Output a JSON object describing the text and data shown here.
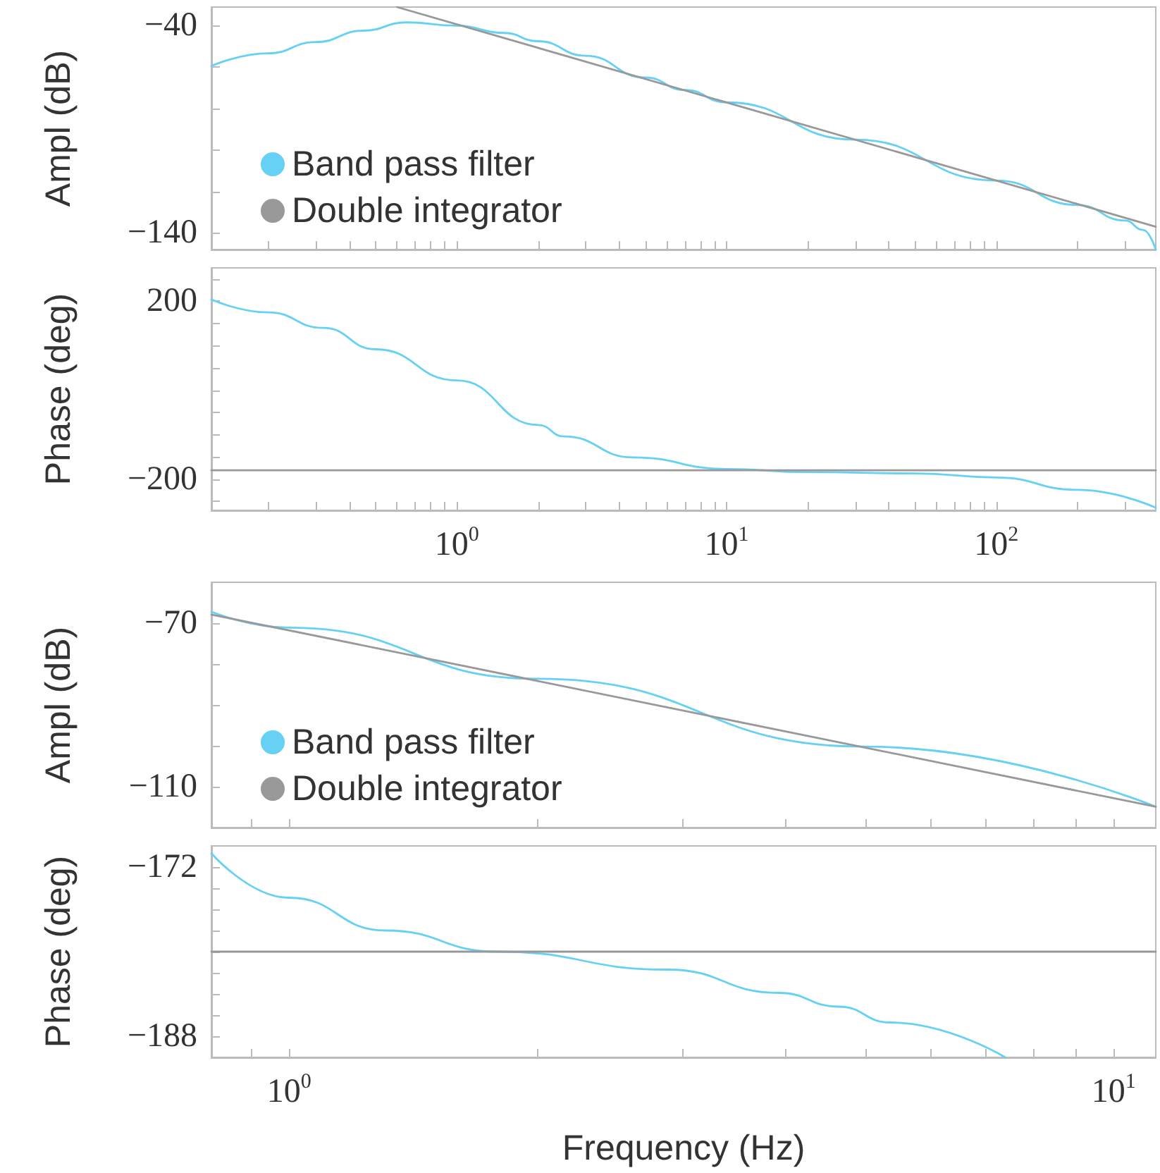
{
  "chart_data": [
    {
      "type": "line",
      "ylabel": "Ampl (dB)",
      "log": "x",
      "xlim": [
        0.123,
        390
      ],
      "ylim": [
        -148,
        -31
      ],
      "tick_labels": "y",
      "legend": "bottom left",
      "marker": "none",
      "xticks": [
        {
          "value": 0.2,
          "label": null
        },
        {
          "value": 0.3,
          "label": null
        },
        {
          "value": 0.4,
          "label": null
        },
        {
          "value": 0.5,
          "label": null
        },
        {
          "value": 0.6,
          "label": null
        },
        {
          "value": 0.7,
          "label": null
        },
        {
          "value": 0.8,
          "label": null
        },
        {
          "value": 0.9,
          "label": null
        },
        {
          "value": 1,
          "label": null
        },
        {
          "value": 2,
          "label": null
        },
        {
          "value": 3,
          "label": null
        },
        {
          "value": 4,
          "label": null
        },
        {
          "value": 5,
          "label": null
        },
        {
          "value": 6,
          "label": null
        },
        {
          "value": 7,
          "label": null
        },
        {
          "value": 8,
          "label": null
        },
        {
          "value": 9,
          "label": null
        },
        {
          "value": 10,
          "label": null
        },
        {
          "value": 20,
          "label": null
        },
        {
          "value": 30,
          "label": null
        },
        {
          "value": 40,
          "label": null
        },
        {
          "value": 50,
          "label": null
        },
        {
          "value": 60,
          "label": null
        },
        {
          "value": 70,
          "label": null
        },
        {
          "value": 80,
          "label": null
        },
        {
          "value": 90,
          "label": null
        },
        {
          "value": 100,
          "label": null
        },
        {
          "value": 200,
          "label": null
        },
        {
          "value": 300,
          "label": null
        }
      ],
      "yticks": [
        {
          "value": -140,
          "label": "−140"
        },
        {
          "value": -120,
          "label": null
        },
        {
          "value": -100,
          "label": null
        },
        {
          "value": -80,
          "label": null
        },
        {
          "value": -60,
          "label": null
        },
        {
          "value": -40,
          "label": "−40"
        }
      ],
      "series": [
        {
          "name": "Band pass filter",
          "color": "#66d0f5",
          "x": [
            0.123,
            0.2,
            0.3,
            0.45,
            0.65,
            1,
            1.5,
            2,
            3,
            5,
            7,
            10,
            30,
            100,
            200,
            300,
            350,
            390
          ],
          "values": [
            -59.4,
            -53.3,
            -47.9,
            -42.4,
            -38.4,
            -40,
            -43.5,
            -47.5,
            -54.5,
            -65,
            -71,
            -77,
            -95,
            -114.7,
            -126.5,
            -134,
            -138.5,
            -148
          ]
        },
        {
          "name": "Double integrator",
          "color": "#999999",
          "x": [
            0.6,
            390
          ],
          "values": [
            -31,
            -137
          ]
        }
      ]
    },
    {
      "type": "line",
      "ylabel": "Phase (deg)",
      "log": "x",
      "xlim": [
        0.123,
        390
      ],
      "ylim": [
        -270,
        275
      ],
      "marker": "none",
      "xticks": [
        {
          "value": 0.2,
          "label": null
        },
        {
          "value": 0.3,
          "label": null
        },
        {
          "value": 0.4,
          "label": null
        },
        {
          "value": 0.5,
          "label": null
        },
        {
          "value": 0.6,
          "label": null
        },
        {
          "value": 0.7,
          "label": null
        },
        {
          "value": 0.8,
          "label": null
        },
        {
          "value": 0.9,
          "label": null
        },
        {
          "value": 1,
          "label": "10$^{0}$"
        },
        {
          "value": 2,
          "label": null
        },
        {
          "value": 3,
          "label": null
        },
        {
          "value": 4,
          "label": null
        },
        {
          "value": 5,
          "label": null
        },
        {
          "value": 6,
          "label": null
        },
        {
          "value": 7,
          "label": null
        },
        {
          "value": 8,
          "label": null
        },
        {
          "value": 9,
          "label": null
        },
        {
          "value": 10,
          "label": "10$^{1}$"
        },
        {
          "value": 20,
          "label": null
        },
        {
          "value": 30,
          "label": null
        },
        {
          "value": 40,
          "label": null
        },
        {
          "value": 50,
          "label": null
        },
        {
          "value": 60,
          "label": null
        },
        {
          "value": 70,
          "label": null
        },
        {
          "value": 80,
          "label": null
        },
        {
          "value": 90,
          "label": null
        },
        {
          "value": 100,
          "label": "10$^{2}$"
        },
        {
          "value": 200,
          "label": null
        },
        {
          "value": 300,
          "label": null
        }
      ],
      "yticks": [
        {
          "value": -250,
          "label": null
        },
        {
          "value": -200,
          "label": "−200"
        },
        {
          "value": -150,
          "label": null
        },
        {
          "value": -100,
          "label": null
        },
        {
          "value": -50,
          "label": null
        },
        {
          "value": 0,
          "label": null
        },
        {
          "value": 50,
          "label": null
        },
        {
          "value": 100,
          "label": null
        },
        {
          "value": 150,
          "label": null
        },
        {
          "value": 200,
          "label": "200"
        },
        {
          "value": 250,
          "label": null
        }
      ],
      "series": [
        {
          "color": "#66d0f5",
          "x": [
            0.123,
            0.2,
            0.32,
            0.5,
            1,
            2,
            2.5,
            4.5,
            10,
            20,
            50,
            100,
            200,
            390
          ],
          "values": [
            204,
            175,
            140,
            92,
            22,
            -78,
            -104,
            -151,
            -177,
            -184,
            -187,
            -196,
            -224,
            -264
          ]
        },
        {
          "color": "#999999",
          "x": [
            0.123,
            390
          ],
          "values": [
            -180,
            -180
          ]
        }
      ]
    },
    {
      "type": "line",
      "ylabel": "Ampl (dB)",
      "log": "x",
      "xlim": [
        0.805,
        11.25
      ],
      "ylim": [
        -120,
        -60
      ],
      "tick_labels": "y",
      "legend": "bottom left",
      "marker": "none",
      "xticks": [
        {
          "value": 0.9,
          "label": null
        },
        {
          "value": 1,
          "label": null
        },
        {
          "value": 2,
          "label": null
        },
        {
          "value": 3,
          "label": null
        },
        {
          "value": 4,
          "label": null
        },
        {
          "value": 5,
          "label": null
        },
        {
          "value": 6,
          "label": null
        },
        {
          "value": 7,
          "label": null
        },
        {
          "value": 8,
          "label": null
        },
        {
          "value": 9,
          "label": null
        },
        {
          "value": 10,
          "label": null
        }
      ],
      "yticks": [
        {
          "value": -110,
          "label": "−110"
        },
        {
          "value": -100,
          "label": null
        },
        {
          "value": -90,
          "label": null
        },
        {
          "value": -80,
          "label": null
        },
        {
          "value": -70,
          "label": "−70"
        }
      ],
      "series": [
        {
          "name": "Band pass filter",
          "color": "#66d0f5",
          "x": [
            0.805,
            1,
            2,
            5,
            11.25
          ],
          "values": [
            -67.2,
            -71.1,
            -83.6,
            -100.2,
            -114.9
          ]
        },
        {
          "name": "Double integrator",
          "color": "#999999",
          "x": [
            0.805,
            11.25
          ],
          "values": [
            -67.9,
            -114.9
          ]
        }
      ]
    },
    {
      "type": "line",
      "ylabel": "Phase (deg)",
      "xlabel": "Frequency (Hz)",
      "log": "x",
      "xlim": [
        0.805,
        11.25
      ],
      "ylim": [
        -190,
        -170
      ],
      "marker": "none",
      "xticks": [
        {
          "value": 0.9,
          "label": null
        },
        {
          "value": 1,
          "label": "10$^{0}$"
        },
        {
          "value": 2,
          "label": null
        },
        {
          "value": 3,
          "label": null
        },
        {
          "value": 4,
          "label": null
        },
        {
          "value": 5,
          "label": null
        },
        {
          "value": 6,
          "label": null
        },
        {
          "value": 7,
          "label": null
        },
        {
          "value": 8,
          "label": null
        },
        {
          "value": 9,
          "label": null
        },
        {
          "value": 10,
          "label": "10$^{1}$"
        }
      ],
      "yticks": [
        {
          "value": -188,
          "label": "−188"
        },
        {
          "value": -186,
          "label": null
        },
        {
          "value": -184,
          "label": null
        },
        {
          "value": -182,
          "label": null
        },
        {
          "value": -180,
          "label": null
        },
        {
          "value": -178,
          "label": null
        },
        {
          "value": -176,
          "label": null
        },
        {
          "value": -174,
          "label": null
        },
        {
          "value": -172,
          "label": "−172"
        }
      ],
      "series": [
        {
          "color": "#66d0f5",
          "x": [
            0.805,
            1,
            1.31,
            1.79,
            2.88,
            3.93,
            4.64,
            5.36,
            7.39
          ],
          "values": [
            -170.7,
            -174.9,
            -178,
            -180,
            -181.7,
            -183.9,
            -185.2,
            -186.7,
            -190
          ]
        },
        {
          "color": "#999999",
          "x": [
            0.805,
            11.25
          ],
          "values": [
            -180,
            -180
          ]
        }
      ]
    }
  ]
}
